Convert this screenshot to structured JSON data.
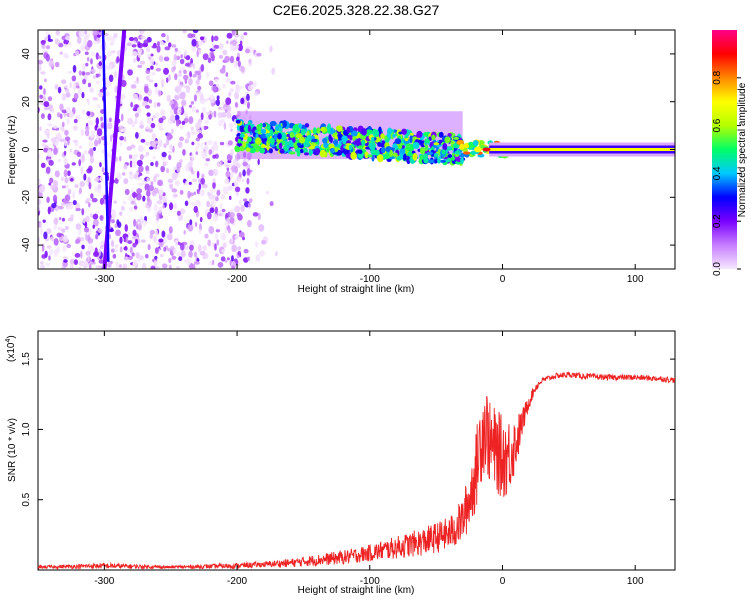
{
  "title": "C2E6.2025.328.22.38.G27",
  "chart_data": [
    {
      "type": "heatmap",
      "name": "spectrogram",
      "xlabel": "Height of straight line (km)",
      "ylabel": "Frequency (Hz)",
      "xlim": [
        -350,
        130
      ],
      "ylim": [
        -50,
        50
      ],
      "x_ticks": [
        -300,
        -200,
        -100,
        0,
        100
      ],
      "x_tick_labels": [
        "-300",
        "-200",
        "-100",
        "0",
        "100"
      ],
      "y_ticks": [
        -40,
        -20,
        0,
        20,
        40
      ],
      "y_tick_labels": [
        "-40",
        "-20",
        "0",
        "20",
        "40"
      ],
      "colorbar": {
        "label": "Normalized spectral amplitude",
        "range": [
          0,
          1
        ],
        "ticks": [
          0.0,
          0.2,
          0.4,
          0.6,
          0.8
        ],
        "tick_labels": [
          "0.0",
          "0.2",
          "0.4",
          "0.6",
          "0.8"
        ],
        "colors": [
          "#f6e8ff",
          "#c77dff",
          "#7a00ff",
          "#0000ff",
          "#00c8ff",
          "#00ff66",
          "#b4ff00",
          "#ffff00",
          "#ff8800",
          "#ff0000",
          "#ff0088"
        ]
      },
      "features": [
        {
          "kind": "diagonal_streak",
          "x_from": -300,
          "x_to": -285,
          "y_from": -50,
          "y_to": 50,
          "amplitude": 0.2
        },
        {
          "kind": "noise_region",
          "x_from": -350,
          "x_to": -190,
          "amplitude": 0.15
        },
        {
          "kind": "signal_band",
          "x_from": -200,
          "x_to": -30,
          "center_start": 6,
          "center_end": 0,
          "halfwidth": 6,
          "amplitude": 0.35
        },
        {
          "kind": "carrier_line",
          "x_from": -10,
          "x_to": 130,
          "frequency": 0,
          "amplitude": 0.7
        }
      ]
    },
    {
      "type": "line",
      "name": "snr",
      "xlabel": "Height of straight line (km)",
      "ylabel": "SNR (10 * v/v)",
      "y_scale_label": "(x10",
      "y_scale_exponent": "4",
      "y_scale_close": ")",
      "xlim": [
        -350,
        130
      ],
      "ylim": [
        0,
        1.7
      ],
      "x_ticks": [
        -300,
        -200,
        -100,
        0,
        100
      ],
      "x_tick_labels": [
        "-300",
        "-200",
        "-100",
        "0",
        "100"
      ],
      "y_ticks": [
        0.5,
        1.0,
        1.5
      ],
      "y_tick_labels": [
        "0.5",
        "1.0",
        "1.5"
      ],
      "color": "#ee2222",
      "series": [
        {
          "name": "SNR",
          "x": [
            -350,
            -300,
            -250,
            -200,
            -180,
            -160,
            -140,
            -120,
            -100,
            -90,
            -80,
            -70,
            -60,
            -50,
            -40,
            -35,
            -30,
            -25,
            -20,
            -17,
            -15,
            -12,
            -10,
            -5,
            0,
            5,
            10,
            15,
            20,
            25,
            30,
            40,
            50,
            60,
            80,
            100,
            120,
            130
          ],
          "y": [
            0.02,
            0.03,
            0.02,
            0.03,
            0.04,
            0.05,
            0.07,
            0.09,
            0.12,
            0.14,
            0.16,
            0.18,
            0.2,
            0.23,
            0.26,
            0.3,
            0.36,
            0.5,
            0.7,
            0.9,
            1.0,
            1.02,
            0.9,
            0.85,
            0.8,
            0.82,
            0.9,
            1.05,
            1.2,
            1.3,
            1.35,
            1.38,
            1.39,
            1.38,
            1.37,
            1.37,
            1.36,
            1.35
          ],
          "noise": [
            0.01,
            0.02,
            0.01,
            0.02,
            0.02,
            0.03,
            0.04,
            0.05,
            0.06,
            0.07,
            0.08,
            0.09,
            0.1,
            0.11,
            0.12,
            0.14,
            0.16,
            0.22,
            0.28,
            0.32,
            0.35,
            0.3,
            0.3,
            0.3,
            0.3,
            0.28,
            0.2,
            0.1,
            0.05,
            0.03,
            0.02,
            0.02,
            0.02,
            0.02,
            0.02,
            0.02,
            0.02,
            0.02
          ]
        }
      ]
    }
  ]
}
